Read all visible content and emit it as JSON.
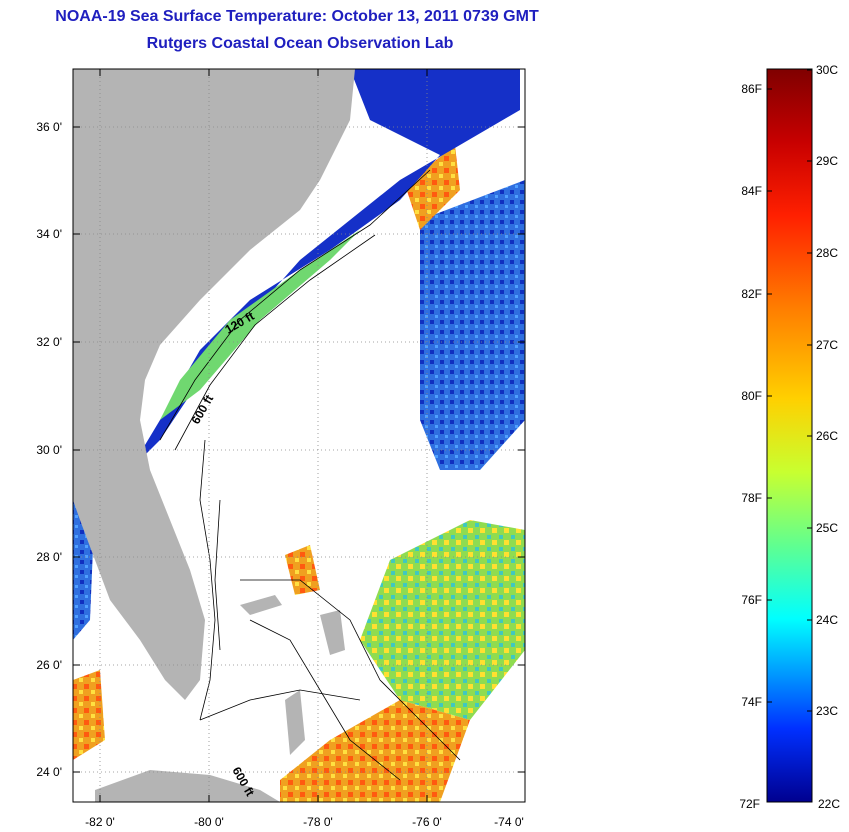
{
  "header": {
    "title": "NOAA-19 Sea Surface Temperature:  October 13, 2011 0739 GMT",
    "subtitle": "Rutgers Coastal Ocean Observation Lab"
  },
  "map": {
    "lon_labels": [
      "-82 0'",
      "-80 0'",
      "-78 0'",
      "-76 0'",
      "-74 0'"
    ],
    "lat_labels": [
      "36 0'",
      "34 0'",
      "32 0'",
      "30 0'",
      "28 0'",
      "26 0'",
      "24 0'"
    ],
    "contour_labels": [
      "120 ft",
      "600 ft",
      "600 ft"
    ],
    "land_color": "#b4b4b4",
    "nodata_color": "#ffffff"
  },
  "colorbar": {
    "left_labels": [
      "86F",
      "84F",
      "82F",
      "80F",
      "78F",
      "76F",
      "74F",
      "72F"
    ],
    "right_labels": [
      "30C",
      "29C",
      "28C",
      "27C",
      "26C",
      "25C",
      "24C",
      "23C",
      "22C"
    ],
    "colors": [
      "#7f0000",
      "#ff0000",
      "#ff8000",
      "#ffff00",
      "#80ff80",
      "#00ffff",
      "#0080ff",
      "#0000ff",
      "#00008f"
    ]
  }
}
